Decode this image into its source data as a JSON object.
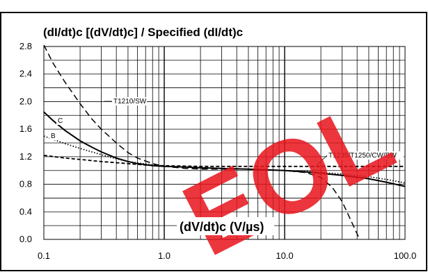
{
  "chart_data": {
    "type": "line",
    "title": "(dI/dt)c [(dV/dt)c] / Specified (dI/dt)c",
    "xlabel": "(dV/dt)c (V/µs)",
    "ylabel": "",
    "xscale": "log",
    "xlim": [
      0.1,
      100.0
    ],
    "ylim": [
      0.0,
      2.8
    ],
    "x_tick_labels": [
      "0.1",
      "1.0",
      "10.0",
      "100.0"
    ],
    "y_tick_labels": [
      "0.0",
      "0.4",
      "0.8",
      "1.2",
      "1.6",
      "2.0",
      "2.4",
      "2.8"
    ],
    "grid": true,
    "annotations": [
      "T1210/SW",
      "C",
      "B",
      "T1235/T1250/CW/BW"
    ],
    "watermark": "EOL",
    "series": [
      {
        "label": "T1210/SW",
        "style": "long-dash",
        "x": [
          0.1,
          0.12,
          0.15,
          0.2,
          0.25,
          0.3,
          0.4,
          0.5,
          0.6,
          0.8,
          1.0,
          1.5,
          2,
          3,
          5,
          7,
          10,
          15,
          20,
          25,
          30,
          35,
          40,
          42
        ],
        "y": [
          2.82,
          2.55,
          2.28,
          1.97,
          1.75,
          1.6,
          1.4,
          1.26,
          1.18,
          1.1,
          1.06,
          1.03,
          1.02,
          1.02,
          1.02,
          1.01,
          1.0,
          0.97,
          0.9,
          0.75,
          0.55,
          0.3,
          0.08,
          0.0
        ]
      },
      {
        "label": "C",
        "style": "solid",
        "x": [
          0.1,
          0.12,
          0.15,
          0.2,
          0.25,
          0.3,
          0.4,
          0.5,
          0.6,
          0.8,
          1.0,
          1.5,
          2,
          3,
          5,
          7,
          10,
          15,
          20,
          30,
          50,
          70,
          100
        ],
        "y": [
          1.85,
          1.72,
          1.58,
          1.43,
          1.34,
          1.27,
          1.18,
          1.13,
          1.1,
          1.07,
          1.06,
          1.05,
          1.04,
          1.03,
          1.02,
          1.01,
          1.0,
          0.98,
          0.96,
          0.93,
          0.88,
          0.83,
          0.77
        ]
      },
      {
        "label": "B",
        "style": "dotted",
        "x": [
          0.1,
          0.12,
          0.15,
          0.2,
          0.25,
          0.3,
          0.4,
          0.5,
          0.6,
          0.8,
          1.0,
          1.5,
          2,
          3,
          5,
          7,
          10,
          15,
          20,
          30,
          50,
          70,
          100
        ],
        "y": [
          1.5,
          1.45,
          1.39,
          1.32,
          1.27,
          1.23,
          1.17,
          1.13,
          1.11,
          1.08,
          1.06,
          1.05,
          1.04,
          1.03,
          1.02,
          1.01,
          1.0,
          0.99,
          0.97,
          0.95,
          0.91,
          0.87,
          0.82
        ]
      },
      {
        "label": "T1235/T1250/CW/BW",
        "style": "short-dash",
        "x": [
          0.1,
          0.15,
          0.2,
          0.3,
          0.5,
          0.7,
          1.0,
          2,
          3,
          5,
          10,
          20,
          50,
          100
        ],
        "y": [
          1.22,
          1.18,
          1.16,
          1.13,
          1.1,
          1.08,
          1.07,
          1.06,
          1.06,
          1.06,
          1.06,
          1.06,
          1.06,
          1.06
        ]
      }
    ]
  }
}
